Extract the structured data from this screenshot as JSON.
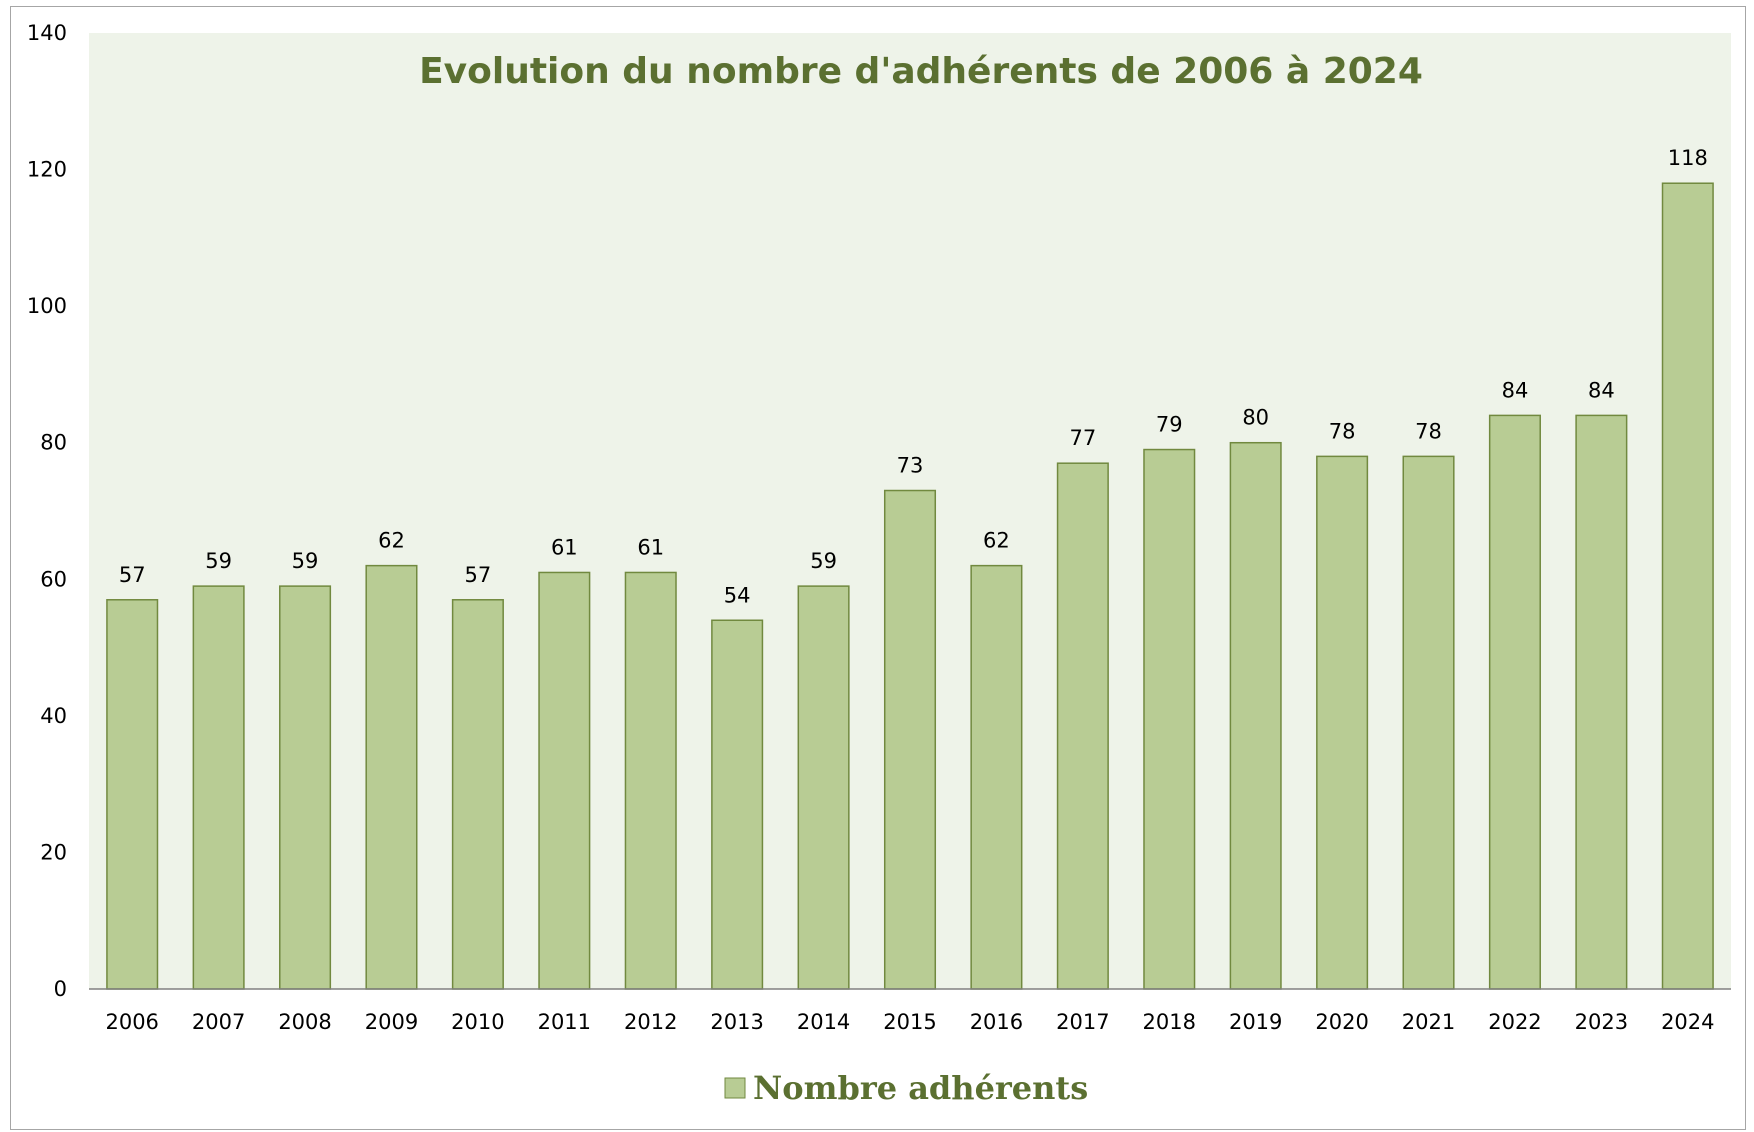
{
  "chart_data": {
    "type": "bar",
    "title": "Evolution du nombre d'adhérents de 2006 à 2024",
    "categories": [
      "2006",
      "2007",
      "2008",
      "2009",
      "2010",
      "2011",
      "2012",
      "2013",
      "2014",
      "2015",
      "2016",
      "2017",
      "2018",
      "2019",
      "2020",
      "2021",
      "2022",
      "2023",
      "2024"
    ],
    "series": [
      {
        "name": "Nombre adhérents",
        "values": [
          57,
          59,
          59,
          62,
          57,
          61,
          61,
          54,
          59,
          73,
          62,
          77,
          79,
          80,
          78,
          78,
          84,
          84,
          118
        ]
      }
    ],
    "ylim": [
      0,
      140
    ],
    "yticks": [
      0,
      20,
      40,
      60,
      80,
      100,
      120,
      140
    ],
    "grid": false,
    "legend_position": "bottom",
    "data_labels": true
  },
  "colors": {
    "bar_fill": "#b8cc94",
    "bar_stroke": "#71893f",
    "plot_background": "#eef3e9",
    "title": "#5b7031",
    "legend_text": "#5b7031",
    "axis": "#808080"
  }
}
